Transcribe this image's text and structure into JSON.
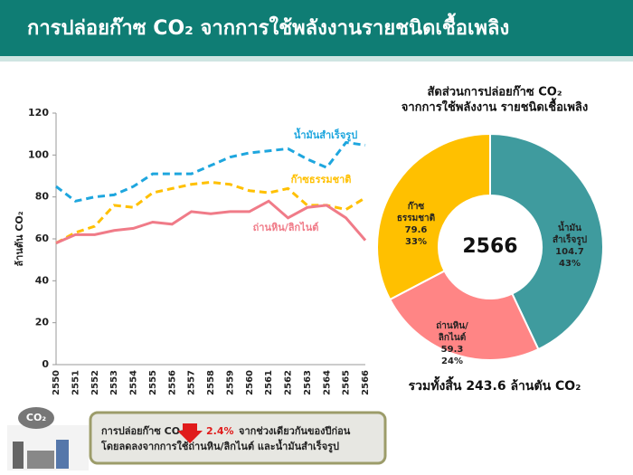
{
  "header": {
    "title": "การปล่อยก๊าซ CO₂ จากการใช้พลังงานรายชนิดเชื้อเพลิง"
  },
  "chart_data": [
    {
      "type": "line",
      "y_label": "ล้านตัน CO₂",
      "categories": [
        "2550",
        "2551",
        "2552",
        "2553",
        "2554",
        "2555",
        "2556",
        "2557",
        "2558",
        "2559",
        "2560",
        "2561",
        "2562",
        "2563",
        "2564",
        "2565",
        "2566"
      ],
      "ylim": [
        0,
        120
      ],
      "yticks": [
        0,
        20,
        40,
        60,
        80,
        100,
        120
      ],
      "series": [
        {
          "name": "น้ำมันสำเร็จรูป",
          "color": "#1ea6de",
          "dash": true,
          "values": [
            85,
            78,
            80,
            81,
            85,
            91,
            91,
            91,
            95,
            99,
            101,
            102,
            103,
            98,
            94,
            106,
            104.7
          ]
        },
        {
          "name": "ก๊าซธรรมชาติ",
          "color": "#ffc000",
          "dash": true,
          "values": [
            58,
            63,
            66,
            76,
            75,
            82,
            84,
            86,
            87,
            86,
            83,
            82,
            84,
            76,
            76,
            74,
            79.6
          ]
        },
        {
          "name": "ถ่านหิน/ลิกไนต์",
          "color": "#f07b88",
          "dash": false,
          "values": [
            58,
            62,
            62,
            64,
            65,
            68,
            67,
            73,
            72,
            73,
            73,
            78,
            70,
            75,
            76,
            70,
            59.3
          ]
        }
      ]
    },
    {
      "type": "donut",
      "title_lines": [
        "สัดส่วนการปล่อยก๊าซ CO₂",
        "จากการใช้พลังงาน รายชนิดเชื้อเพลิง"
      ],
      "center_label": "2566",
      "label_lines": [
        [
          "น้ำมัน",
          "สำเร็จรูป"
        ],
        [
          "ถ่านหิน/",
          "ลิกไนต์"
        ],
        [
          "ก๊าซ",
          "ธรรมชาติ"
        ]
      ],
      "values": [
        104.7,
        59.3,
        79.6
      ],
      "value_labels": [
        "43%",
        "24%",
        "33%"
      ],
      "colors": [
        "#3f9b9e",
        "#ff8585",
        "#ffc000"
      ],
      "total_label": "รวมทั้งสิ้น 243.6 ล้านตัน CO₂"
    }
  ],
  "footer": {
    "icon_label": "CO₂",
    "lead": "การปล่อยก๊าซ CO₂",
    "change": "2.4%",
    "tail": "จากช่วงเดียวกันของปีก่อน",
    "line2": "โดยลดลงจากการใช้ถ่านหิน/ลิกไนต์ และน้ำมันสำเร็จรูป"
  }
}
